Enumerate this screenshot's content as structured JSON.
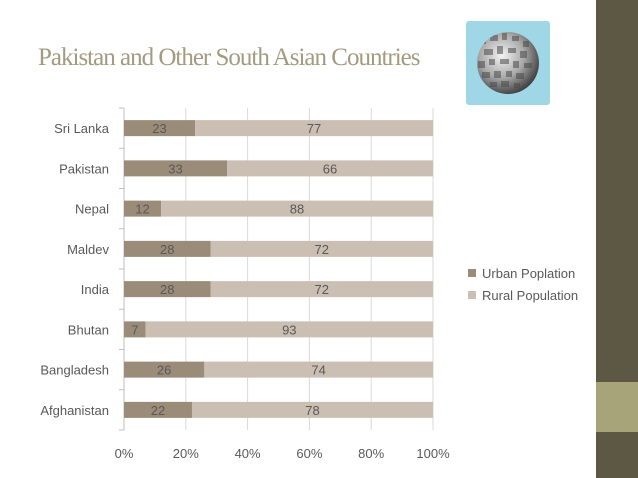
{
  "title": "Pakistan and Other South Asian Countries",
  "icons": {
    "decorative_image": "globe-icon"
  },
  "colors": {
    "urban": "#9b8b79",
    "rural": "#cbbfb3",
    "sidebar": "#5d5844",
    "accent": "#a8a47a",
    "title": "#a39a7f",
    "picture_bg": "#9fd7e6"
  },
  "chart_data": {
    "type": "bar",
    "orientation": "horizontal",
    "stacked": "percent",
    "categories": [
      "Afghanistan",
      "Bangladesh",
      "Bhutan",
      "India",
      "Maldev",
      "Nepal",
      "Pakistan",
      "Sri Lanka"
    ],
    "category_labels": [
      "Afghanistan",
      "Bangladesh",
      "Bhutan",
      "India ",
      "Maldev",
      "Nepal",
      "Pakistan",
      "Sri Lanka "
    ],
    "series": [
      {
        "name": "Urban Poplation",
        "values": [
          22,
          26,
          7,
          28,
          28,
          12,
          33,
          23
        ]
      },
      {
        "name": "Rural Population",
        "values": [
          78,
          74,
          93,
          72,
          72,
          88,
          66,
          77
        ]
      }
    ],
    "x_ticks": [
      "0%",
      "20%",
      "40%",
      "60%",
      "80%",
      "100%"
    ],
    "xlim": [
      0,
      100
    ],
    "grid": "vertical",
    "legend_position": "right",
    "title": "",
    "xlabel": "",
    "ylabel": ""
  }
}
